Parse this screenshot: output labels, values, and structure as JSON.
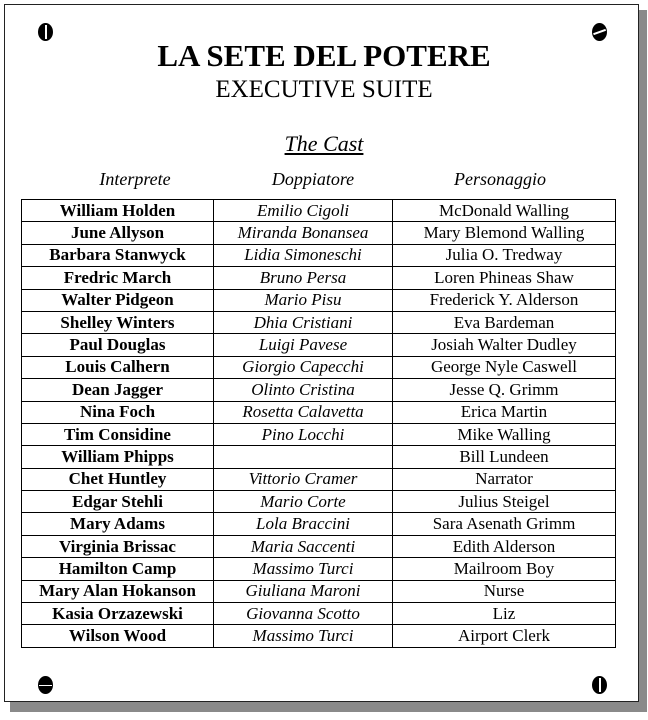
{
  "title": "LA SETE DEL POTERE",
  "subtitle": "EXECUTIVE SUITE",
  "section": "The Cast",
  "columns": [
    "Interprete",
    "Doppiatore",
    "Personaggio"
  ],
  "rows": [
    [
      "William Holden",
      "Emilio Cigoli",
      "McDonald Walling"
    ],
    [
      "June Allyson",
      "Miranda Bonansea",
      "Mary Blemond Walling"
    ],
    [
      "Barbara Stanwyck",
      "Lidia Simoneschi",
      "Julia O. Tredway"
    ],
    [
      "Fredric March",
      "Bruno Persa",
      "Loren Phineas Shaw"
    ],
    [
      "Walter Pidgeon",
      "Mario Pisu",
      "Frederick Y. Alderson"
    ],
    [
      "Shelley Winters",
      "Dhia Cristiani",
      "Eva Bardeman"
    ],
    [
      "Paul Douglas",
      "Luigi Pavese",
      "Josiah Walter Dudley"
    ],
    [
      "Louis Calhern",
      "Giorgio Capecchi",
      "George Nyle Caswell"
    ],
    [
      "Dean Jagger",
      "Olinto Cristina",
      "Jesse Q. Grimm"
    ],
    [
      "Nina Foch",
      "Rosetta Calavetta",
      "Erica Martin"
    ],
    [
      "Tim Considine",
      "Pino Locchi",
      "Mike Walling"
    ],
    [
      "William Phipps",
      "",
      "Bill Lundeen"
    ],
    [
      "Chet Huntley",
      "Vittorio Cramer",
      "Narrator"
    ],
    [
      "Edgar Stehli",
      "Mario Corte",
      "Julius Steigel"
    ],
    [
      "Mary Adams",
      "Lola Braccini",
      "Sara Asenath Grimm"
    ],
    [
      "Virginia Brissac",
      "Maria Saccenti",
      "Edith Alderson"
    ],
    [
      "Hamilton Camp",
      "Massimo Turci",
      "Mailroom Boy"
    ],
    [
      "Mary Alan Hokanson",
      "Giuliana Maroni",
      "Nurse"
    ],
    [
      "Kasia Orzazewski",
      "Giovanna Scotto",
      "Liz"
    ],
    [
      "Wilson Wood",
      "Massimo Turci",
      "Airport Clerk"
    ]
  ]
}
